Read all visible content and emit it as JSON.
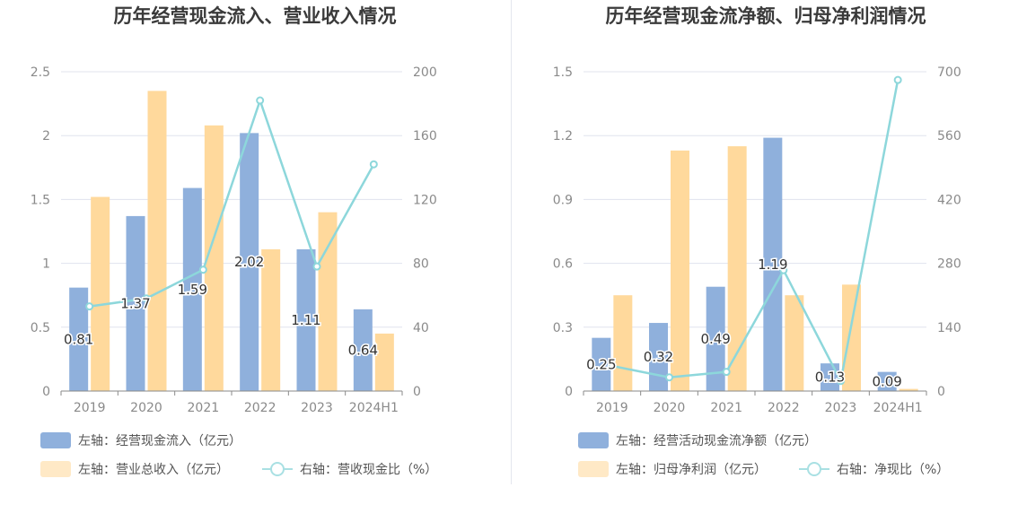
{
  "chart_data": [
    {
      "type": "bar",
      "title": "历年经营现金流入、营业收入情况",
      "categories": [
        "2019",
        "2020",
        "2021",
        "2022",
        "2023",
        "2024H1"
      ],
      "yleft": {
        "ticks": [
          "0",
          "0.5",
          "1",
          "1.5",
          "2",
          "2.5"
        ],
        "ylim": [
          0,
          2.5
        ]
      },
      "yright": {
        "ticks": [
          "0",
          "40",
          "80",
          "120",
          "160",
          "200"
        ],
        "ylim": [
          0,
          200
        ]
      },
      "series": [
        {
          "name": "左轴：经营现金流入（亿元）",
          "kind": "bar",
          "axis": "left",
          "color": "#8fb0dc",
          "values": [
            0.81,
            1.37,
            1.59,
            2.02,
            1.11,
            0.64
          ],
          "labels": [
            "0.81",
            "1.37",
            "1.59",
            "2.02",
            "1.11",
            "0.64"
          ]
        },
        {
          "name": "左轴：营业总收入（亿元）",
          "kind": "bar",
          "axis": "left",
          "color": "#ffd99c",
          "values": [
            1.52,
            2.35,
            2.08,
            1.11,
            1.4,
            0.45
          ]
        },
        {
          "name": "右轴：营收现金比（%）",
          "kind": "line",
          "axis": "right",
          "color": "#8dd7db",
          "values": [
            53,
            58,
            76,
            182,
            78,
            142
          ]
        }
      ]
    },
    {
      "type": "bar",
      "title": "历年经营现金流净额、归母净利润情况",
      "categories": [
        "2019",
        "2020",
        "2021",
        "2022",
        "2023",
        "2024H1"
      ],
      "yleft": {
        "ticks": [
          "0",
          "0.3",
          "0.6",
          "0.9",
          "1.2",
          "1.5"
        ],
        "ylim": [
          0,
          1.5
        ]
      },
      "yright": {
        "ticks": [
          "0",
          "140",
          "280",
          "420",
          "560",
          "700"
        ],
        "ylim": [
          0,
          700
        ]
      },
      "series": [
        {
          "name": "左轴：经营活动现金流净额（亿元）",
          "kind": "bar",
          "axis": "left",
          "color": "#8fb0dc",
          "values": [
            0.25,
            0.32,
            0.49,
            1.19,
            0.13,
            0.09
          ],
          "labels": [
            "0.25",
            "0.32",
            "0.49",
            "1.19",
            "0.13",
            "0.09"
          ]
        },
        {
          "name": "左轴：归母净利润（亿元）",
          "kind": "bar",
          "axis": "left",
          "color": "#ffd99c",
          "values": [
            0.45,
            1.13,
            1.15,
            0.45,
            0.5,
            0.01
          ]
        },
        {
          "name": "右轴：净现比（%）",
          "kind": "line",
          "axis": "right",
          "color": "#8dd7db",
          "values": [
            55,
            30,
            42,
            265,
            22,
            682
          ]
        }
      ]
    }
  ]
}
